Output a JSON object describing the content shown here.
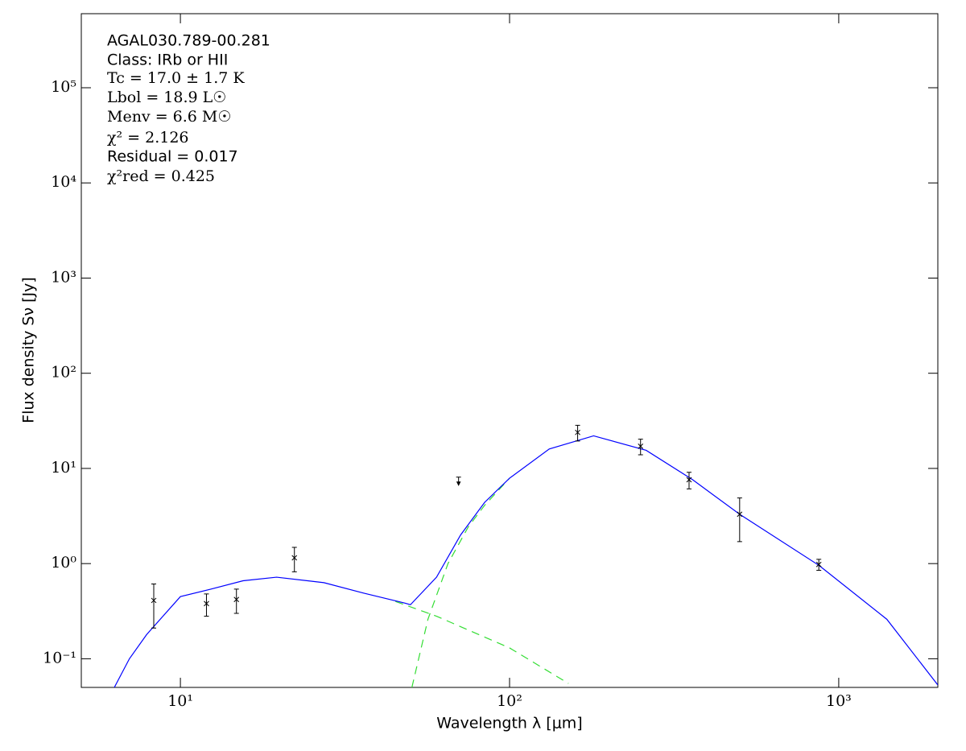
{
  "chart_data": {
    "type": "sed",
    "x_label": "Wavelength λ [μm]",
    "y_label": "Flux density Sν [Jy]",
    "annotations": [
      "AGAL030.789-00.281",
      "Class: IRb or HII",
      "Tc = 17.0 ± 1.7 K",
      "Lbol = 18.9 L☉",
      "Menv = 6.6 M☉",
      "χ² = 2.126",
      "Residual = 0.017",
      "χ²red = 0.425"
    ],
    "x_log": true,
    "y_log": true,
    "xlim": [
      5,
      2000
    ],
    "ylim": [
      0.05,
      600000
    ],
    "xticks": [
      {
        "value": 10,
        "label": "10¹"
      },
      {
        "value": 100,
        "label": "10²"
      },
      {
        "value": 1000,
        "label": "10³"
      }
    ],
    "yticks": [
      {
        "value": 0.1,
        "label": "10⁻¹"
      },
      {
        "value": 1,
        "label": "10⁰"
      },
      {
        "value": 10,
        "label": "10¹"
      },
      {
        "value": 100,
        "label": "10²"
      },
      {
        "value": 1000,
        "label": "10³"
      },
      {
        "value": 10000,
        "label": "10⁴"
      },
      {
        "value": 100000,
        "label": "10⁵"
      }
    ],
    "points": {
      "color": "#000000",
      "x": [
        8.3,
        12,
        14.8,
        22.2,
        161,
        250,
        351,
        500,
        870
      ],
      "y": [
        0.41,
        0.38,
        0.42,
        1.15,
        23.9,
        17.1,
        7.6,
        3.3,
        0.98
      ],
      "yerr": [
        0.2,
        0.1,
        0.12,
        0.33,
        4.5,
        3.2,
        1.5,
        1.6,
        0.13
      ]
    },
    "upper_limits": {
      "color": "#000000",
      "x": [
        70
      ],
      "y": [
        7.5
      ]
    },
    "fit_total": {
      "color": "#0000ff",
      "x": [
        6.3,
        7,
        7.9,
        10,
        12.4,
        15.5,
        19.6,
        27.3,
        36,
        48,
        50,
        60,
        71,
        84,
        100,
        132,
        180,
        260,
        360,
        500,
        870,
        1400,
        2000
      ],
      "y": [
        0.05,
        0.1,
        0.18,
        0.45,
        0.54,
        0.66,
        0.72,
        0.63,
        0.49,
        0.385,
        0.37,
        0.72,
        2.0,
        4.4,
        7.9,
        16,
        22,
        15.5,
        7.6,
        3.3,
        0.96,
        0.26,
        0.053
      ]
    },
    "fit_components": [
      {
        "color": "#33dd33",
        "x": [
          45,
          60,
          100,
          151
        ],
        "y": [
          0.4,
          0.28,
          0.13,
          0.055
        ]
      },
      {
        "color": "#33dd33",
        "x": [
          50.5,
          56.5,
          65,
          75,
          84,
          100
        ],
        "y": [
          0.05,
          0.26,
          1.0,
          2.45,
          4.1,
          7.9
        ]
      }
    ]
  }
}
